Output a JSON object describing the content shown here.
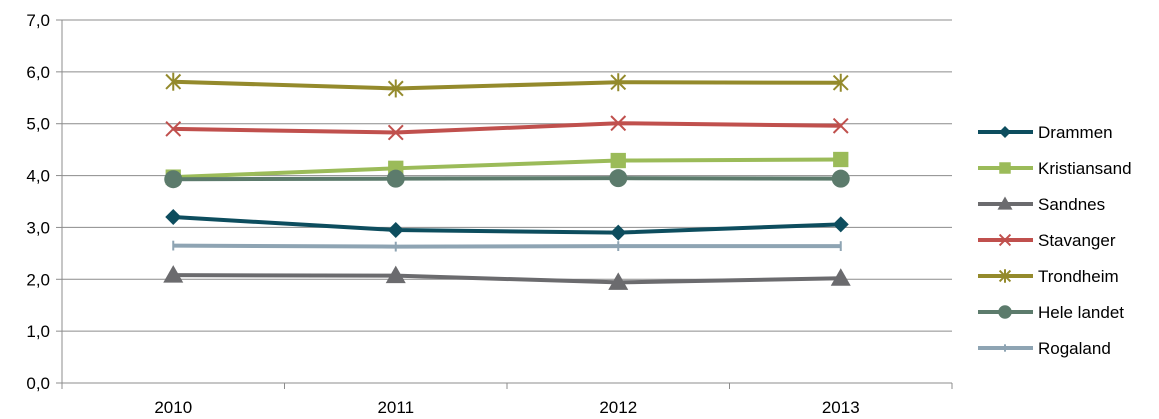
{
  "chart_data": {
    "type": "line",
    "title": "",
    "xlabel": "",
    "ylabel": "",
    "categories": [
      "2010",
      "2011",
      "2012",
      "2013"
    ],
    "ylim": [
      0,
      7
    ],
    "yticks": [
      "0,0",
      "1,0",
      "2,0",
      "3,0",
      "4,0",
      "5,0",
      "6,0",
      "7,0"
    ],
    "grid": true,
    "legend": "right",
    "series": [
      {
        "name": "Drammen",
        "color": "#0d4d5e",
        "marker": "diamond",
        "values": [
          3.2,
          2.95,
          2.9,
          3.06
        ]
      },
      {
        "name": "Kristiansand",
        "color": "#9bbb59",
        "marker": "square",
        "values": [
          3.97,
          4.14,
          4.29,
          4.31
        ]
      },
      {
        "name": "Sandnes",
        "color": "#6b6b6e",
        "marker": "triangle",
        "values": [
          2.08,
          2.07,
          1.94,
          2.02
        ]
      },
      {
        "name": "Stavanger",
        "color": "#c0504d",
        "marker": "x",
        "values": [
          4.9,
          4.83,
          5.01,
          4.96
        ]
      },
      {
        "name": "Trondheim",
        "color": "#948a2c",
        "marker": "star",
        "values": [
          5.81,
          5.68,
          5.8,
          5.79
        ]
      },
      {
        "name": "Hele landet",
        "color": "#5c7b6c",
        "marker": "circle",
        "values": [
          3.93,
          3.94,
          3.95,
          3.94
        ]
      },
      {
        "name": "Rogaland",
        "color": "#8ea4b3",
        "marker": "plus",
        "values": [
          2.65,
          2.63,
          2.64,
          2.64
        ]
      }
    ]
  }
}
